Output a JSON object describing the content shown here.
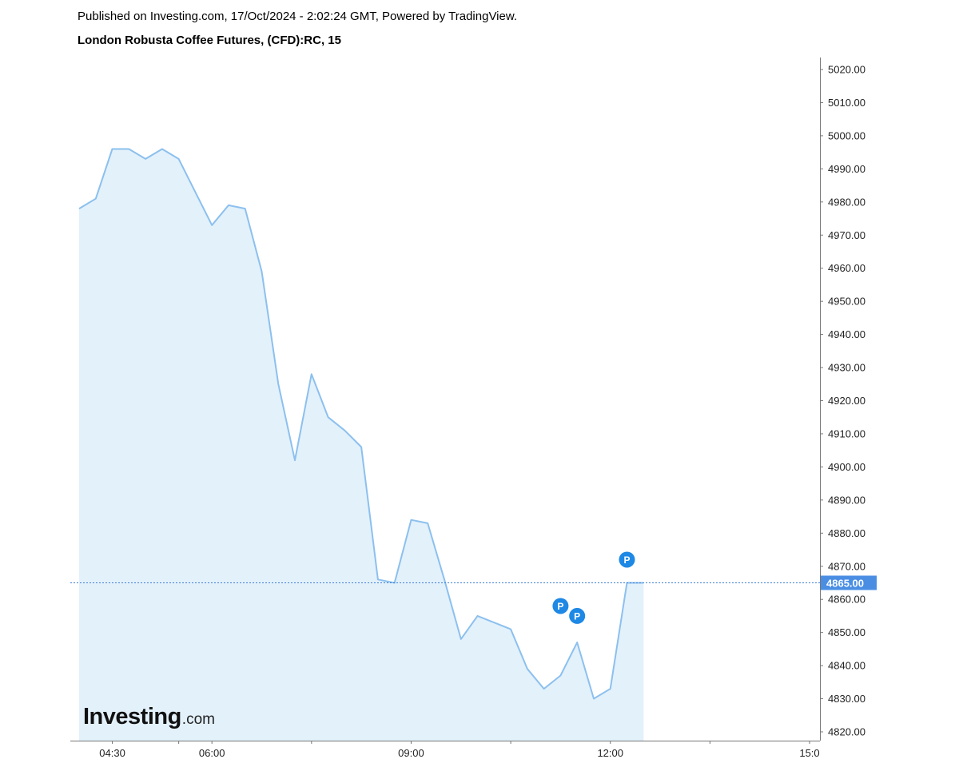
{
  "header": {
    "published": "Published on Investing.com, 17/Oct/2024 - 2:02:24 GMT, Powered by TradingView.",
    "instrument": "London Robusta Coffee Futures, (CFD):RC, 15"
  },
  "logo": {
    "main": "Investing",
    "suffix": ".com"
  },
  "colors": {
    "line": "#8cc0ee",
    "fill": "#e3f1fb",
    "badge": "#1e88e5",
    "price_label": "#4a8ee4",
    "price_line": "#3d7fd6",
    "axis": "#777777"
  },
  "chart_data": {
    "type": "area",
    "x_axis": {
      "unit": "hours (time of day)",
      "range": [
        3.5,
        15.0
      ],
      "ticks": [
        {
          "value": 4.5,
          "label": "04:30"
        },
        {
          "value": 5.5,
          "label": ""
        },
        {
          "value": 6.0,
          "label": "06:00"
        },
        {
          "value": 7.5,
          "label": ""
        },
        {
          "value": 9.0,
          "label": "09:00"
        },
        {
          "value": 10.5,
          "label": ""
        },
        {
          "value": 12.0,
          "label": "12:00"
        },
        {
          "value": 13.5,
          "label": ""
        },
        {
          "value": 15.0,
          "label": "15:0"
        }
      ]
    },
    "y_axis": {
      "range": [
        4815,
        5024
      ],
      "ticks": [
        4820,
        4830,
        4840,
        4850,
        4860,
        4870,
        4880,
        4890,
        4900,
        4910,
        4920,
        4930,
        4940,
        4950,
        4960,
        4970,
        4980,
        4990,
        5000,
        5010,
        5020
      ],
      "tick_labels": [
        "4820.00",
        "4830.00",
        "4840.00",
        "4850.00",
        "4860.00",
        "4870.00",
        "4880.00",
        "4890.00",
        "4900.00",
        "4910.00",
        "4920.00",
        "4930.00",
        "4940.00",
        "4950.00",
        "4960.00",
        "4970.00",
        "4980.00",
        "4990.00",
        "5000.00",
        "5010.00",
        "5020.00"
      ]
    },
    "series": [
      {
        "x": [
          4.0,
          4.25,
          4.5,
          4.75,
          5.0,
          5.25,
          5.5,
          5.75,
          6.0,
          6.25,
          6.5,
          6.75,
          7.0,
          7.25,
          7.5,
          7.75,
          8.0,
          8.25,
          8.5,
          8.75,
          9.0,
          9.25,
          9.5,
          9.75,
          10.0,
          10.25,
          10.5,
          10.75,
          11.0,
          11.25,
          11.5,
          11.75,
          12.0,
          12.25,
          12.5
        ],
        "y": [
          4978,
          4981,
          4996,
          4996,
          4993,
          4996,
          4993,
          4983,
          4973,
          4979,
          4978,
          4959,
          4925,
          4902,
          4928,
          4915,
          4911,
          4906,
          4866,
          4865,
          4884,
          4883,
          4866,
          4848,
          4855,
          4853,
          4851,
          4839,
          4833,
          4837,
          4847,
          4830,
          4833,
          4865,
          4865
        ]
      }
    ],
    "last_price": {
      "value": 4865,
      "label": "4865.00"
    },
    "markers": [
      {
        "label": "P",
        "x": 11.25,
        "y": 4858
      },
      {
        "label": "P",
        "x": 11.5,
        "y": 4855
      },
      {
        "label": "P",
        "x": 12.25,
        "y": 4872
      }
    ],
    "grid": false,
    "legend": "none"
  }
}
